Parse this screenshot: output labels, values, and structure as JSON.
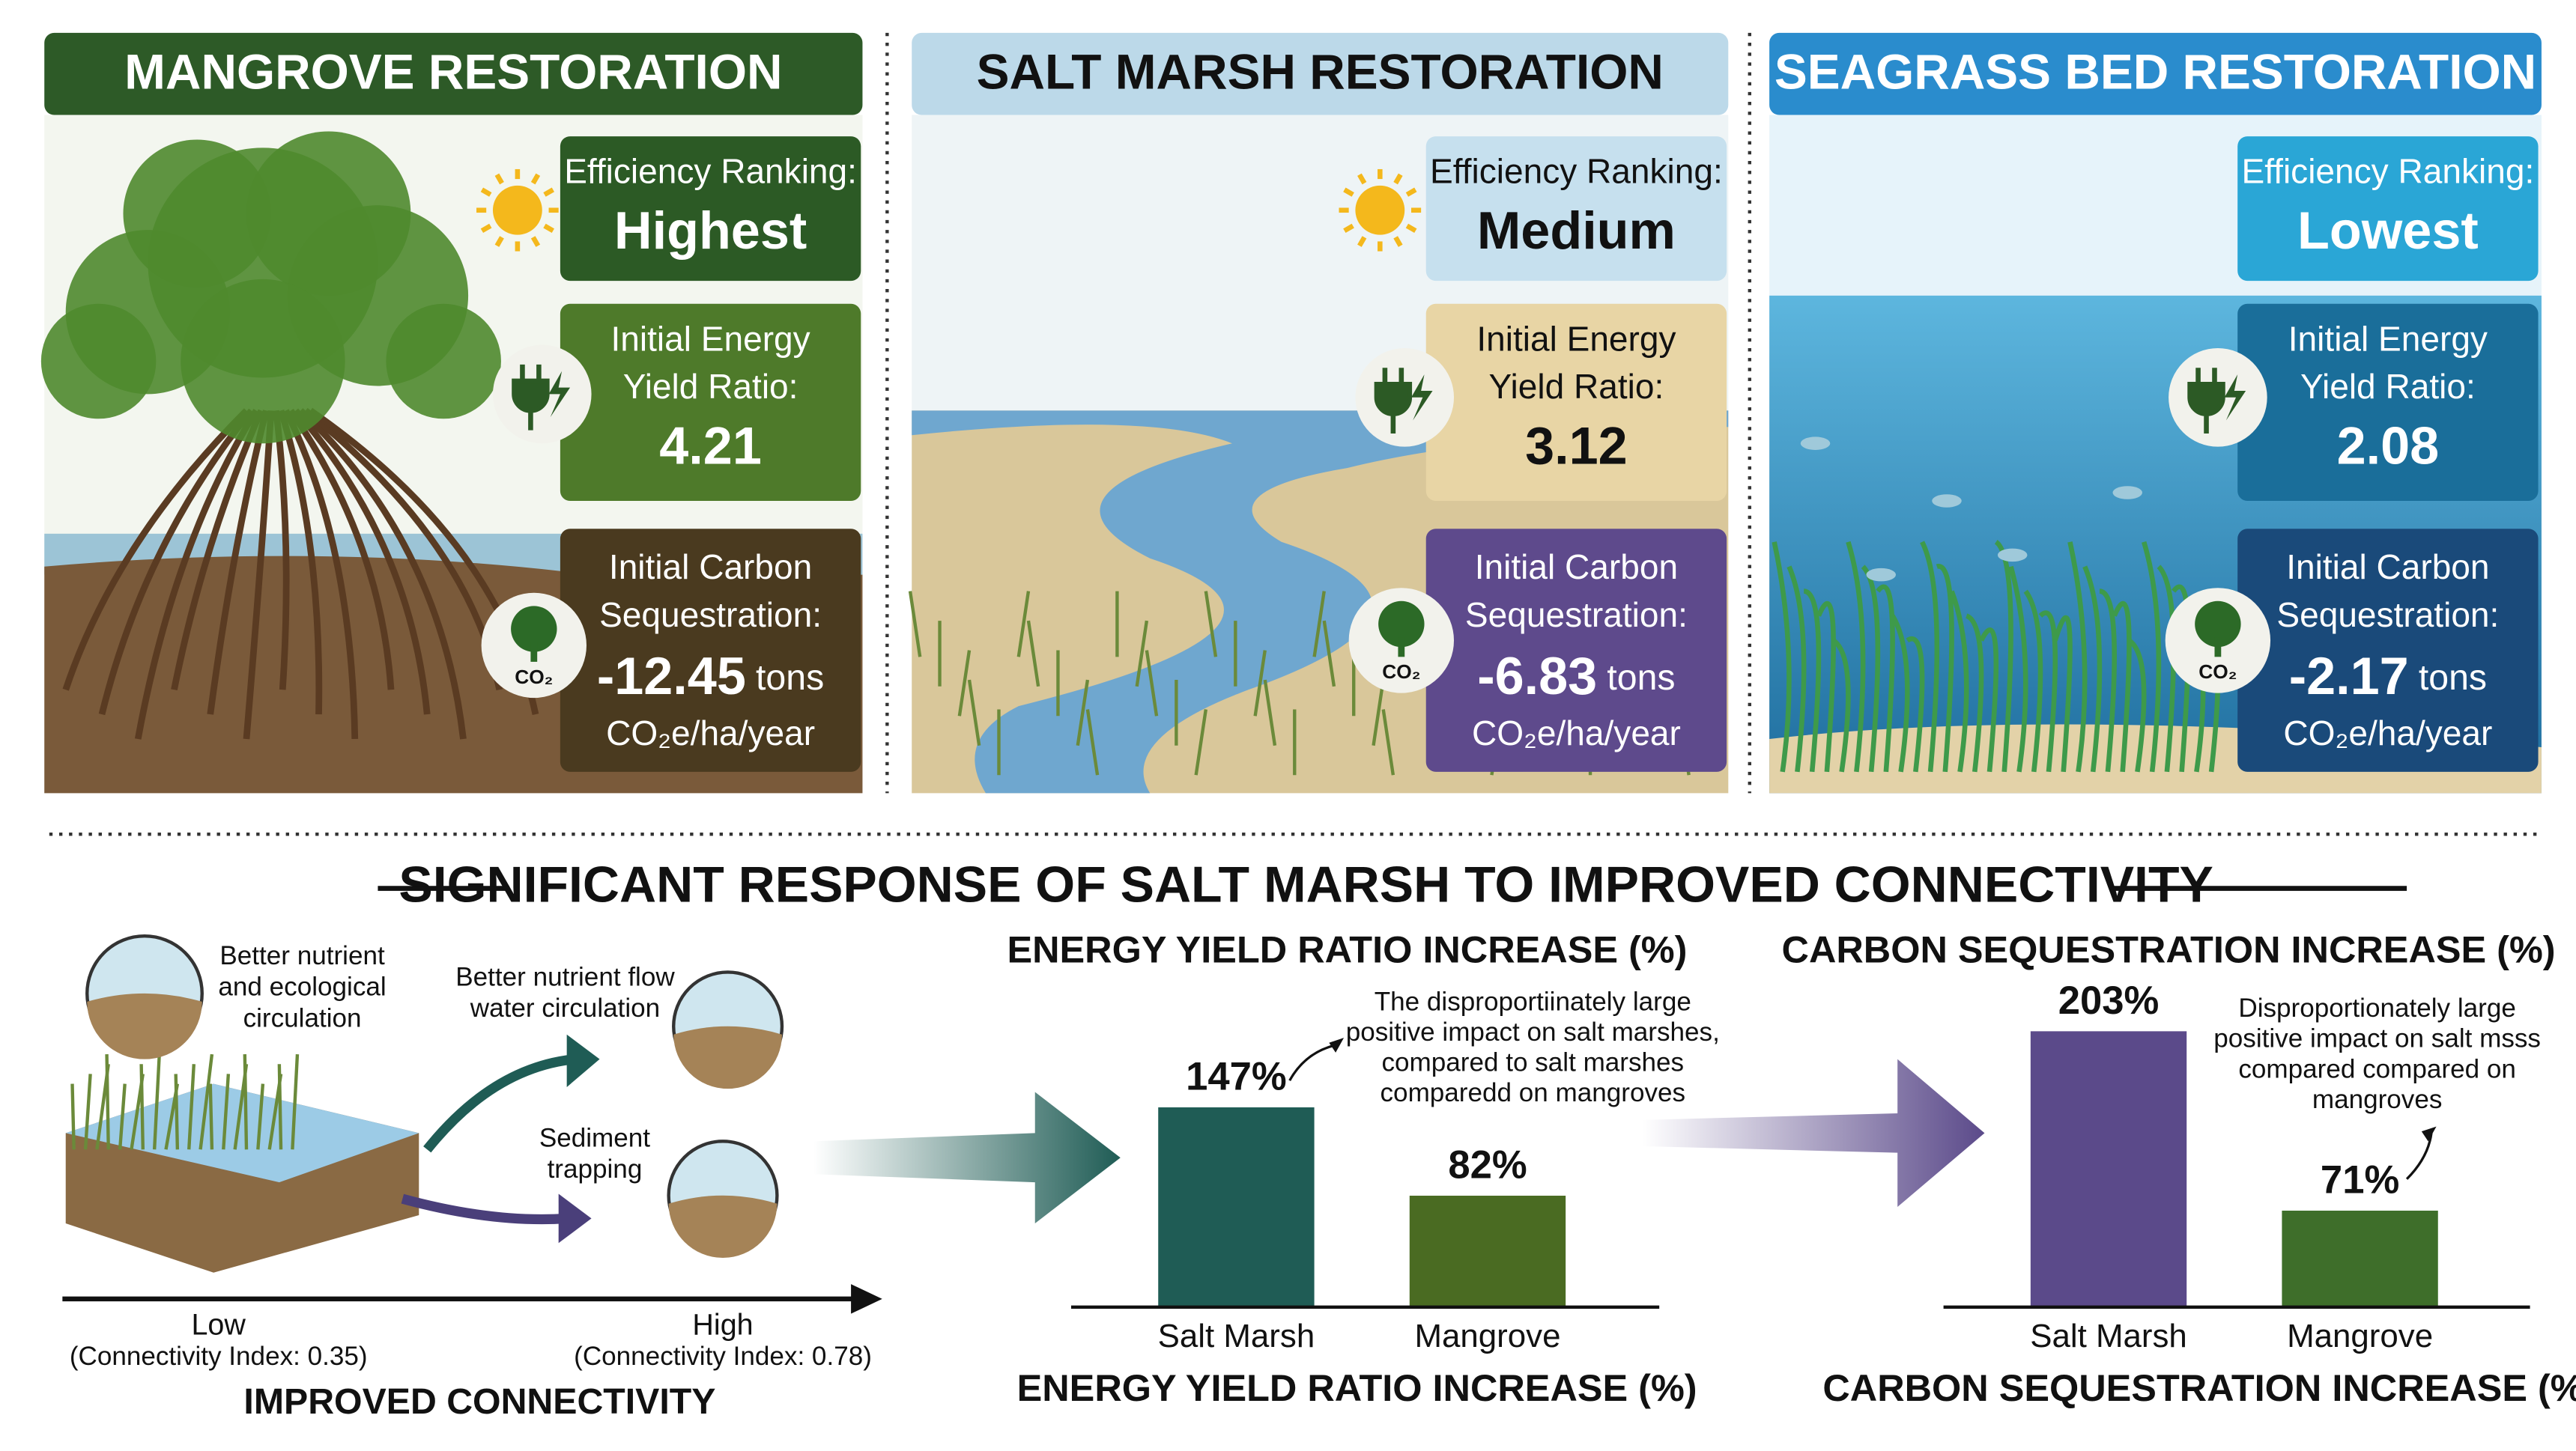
{
  "panels": [
    {
      "title": "MANGROVE RESTORATION",
      "efficiency_label": "Efficiency Ranking:",
      "efficiency": "Highest",
      "energy_label": [
        "Initial Energy",
        "Yield Ratio:"
      ],
      "energy": 4.21,
      "carbon_label": [
        "Initial Carbon",
        "Sequestration:"
      ],
      "carbon": -12.45,
      "carbon_unit": "tons",
      "carbon_per": "CO₂e/ha/year",
      "icon_label": "CO₂"
    },
    {
      "title": "SALT MARSH RESTORATION",
      "efficiency_label": "Efficiency Ranking:",
      "efficiency": "Medium",
      "energy_label": [
        "Initial Energy",
        "Yield Ratio:"
      ],
      "energy": 3.12,
      "carbon_label": [
        "Initial Carbon",
        "Sequestration:"
      ],
      "carbon": -6.83,
      "carbon_unit": "tons",
      "carbon_per": "CO₂e/ha/year",
      "icon_label": "CO₂"
    },
    {
      "title": "SEAGRASS BED RESTORATION",
      "efficiency_label": "Efficiency Ranking:",
      "efficiency": "Lowest",
      "energy_label": [
        "Initial Energy",
        "Yield Ratio:"
      ],
      "energy": 2.08,
      "carbon_label": [
        "Initial Carbon",
        "Sequestration:"
      ],
      "carbon": -2.17,
      "carbon_unit": "tons",
      "carbon_per": "CO₂e/ha/year",
      "icon_label": "CO₂"
    }
  ],
  "section_title": "SIGNIFICANT RESPONSE OF SALT MARSH TO IMPROVED CONNECTIVITY",
  "connectivity": {
    "callouts": [
      [
        "Better nutrient",
        "and ecological",
        "circulation"
      ],
      [
        "Better nutrient flow",
        "water circulation"
      ],
      [
        "Sediment",
        "trapping"
      ]
    ],
    "low": "Low",
    "low_index": "(Connectivity Index: 0.35)",
    "high": "High",
    "high_index": "(Connectivity Index: 0.78)",
    "axis_label": "IMPROVED CONNECTIVITY"
  },
  "chart_data": [
    {
      "type": "bar",
      "title": "ENERGY YIELD RATIO INCREASE (%)",
      "categories": [
        "Salt Marsh",
        "Mangrove"
      ],
      "values": [
        147,
        82
      ],
      "value_labels": [
        "147%",
        "82%"
      ],
      "colors": [
        "#1f5c55",
        "#4a6b22"
      ],
      "xlabel": "ENERGY YIELD RATIO INCREASE (%)",
      "annotation": [
        "The disproportiinately large",
        "positive impact on salt marshes,",
        "compared to salt marshes",
        "comparedd on mangroves"
      ]
    },
    {
      "type": "bar",
      "title": "CARBON SEQUESTRATION INCREASE (%)",
      "categories": [
        "Salt Marsh",
        "Mangrove"
      ],
      "values": [
        203,
        71
      ],
      "value_labels": [
        "203%",
        "71%"
      ],
      "colors": [
        "#5b4a8a",
        "#3e6e2a"
      ],
      "xlabel": "CARBON SEQUESTRATION INCREASE (%)",
      "annotation": [
        "Disproportionately large",
        "positive impact on salt msss",
        "compared compared on",
        "mangroves"
      ]
    }
  ]
}
